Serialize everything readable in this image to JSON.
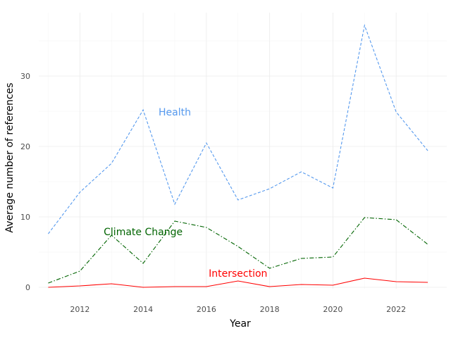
{
  "chart_data": {
    "type": "line",
    "xlabel": "Year",
    "ylabel": "Average number of references",
    "xlim": [
      2010.7,
      2023.6
    ],
    "ylim": [
      -0.2,
      39.0
    ],
    "x_ticks": [
      2012,
      2014,
      2016,
      2018,
      2020,
      2022
    ],
    "y_ticks": [
      0,
      10,
      20,
      30
    ],
    "grid": true,
    "x": [
      2011,
      2012,
      2013,
      2014,
      2015,
      2016,
      2017,
      2018,
      2019,
      2020,
      2021,
      2022,
      2023
    ],
    "series": [
      {
        "name": "Health",
        "color": "#5599ee",
        "dash": "dashed",
        "label_x": 2015.0,
        "label_y": 24.9,
        "values": [
          7.6,
          13.5,
          17.6,
          25.2,
          11.8,
          20.5,
          12.4,
          14.0,
          16.4,
          14.1,
          37.2,
          24.9,
          19.4
        ]
      },
      {
        "name": "Climate Change",
        "color": "#006400",
        "dash": "dashdot",
        "label_x": 2014.0,
        "label_y": 7.9,
        "values": [
          0.6,
          2.3,
          7.4,
          3.4,
          9.4,
          8.5,
          5.8,
          2.7,
          4.1,
          4.3,
          9.9,
          9.6,
          6.1
        ]
      },
      {
        "name": "Intersection",
        "color": "#ff0000",
        "dash": "solid",
        "label_x": 2017.0,
        "label_y": 2.0,
        "values": [
          0.0,
          0.2,
          0.5,
          0.0,
          0.1,
          0.1,
          0.9,
          0.1,
          0.4,
          0.3,
          1.3,
          0.8,
          0.7
        ]
      }
    ]
  }
}
